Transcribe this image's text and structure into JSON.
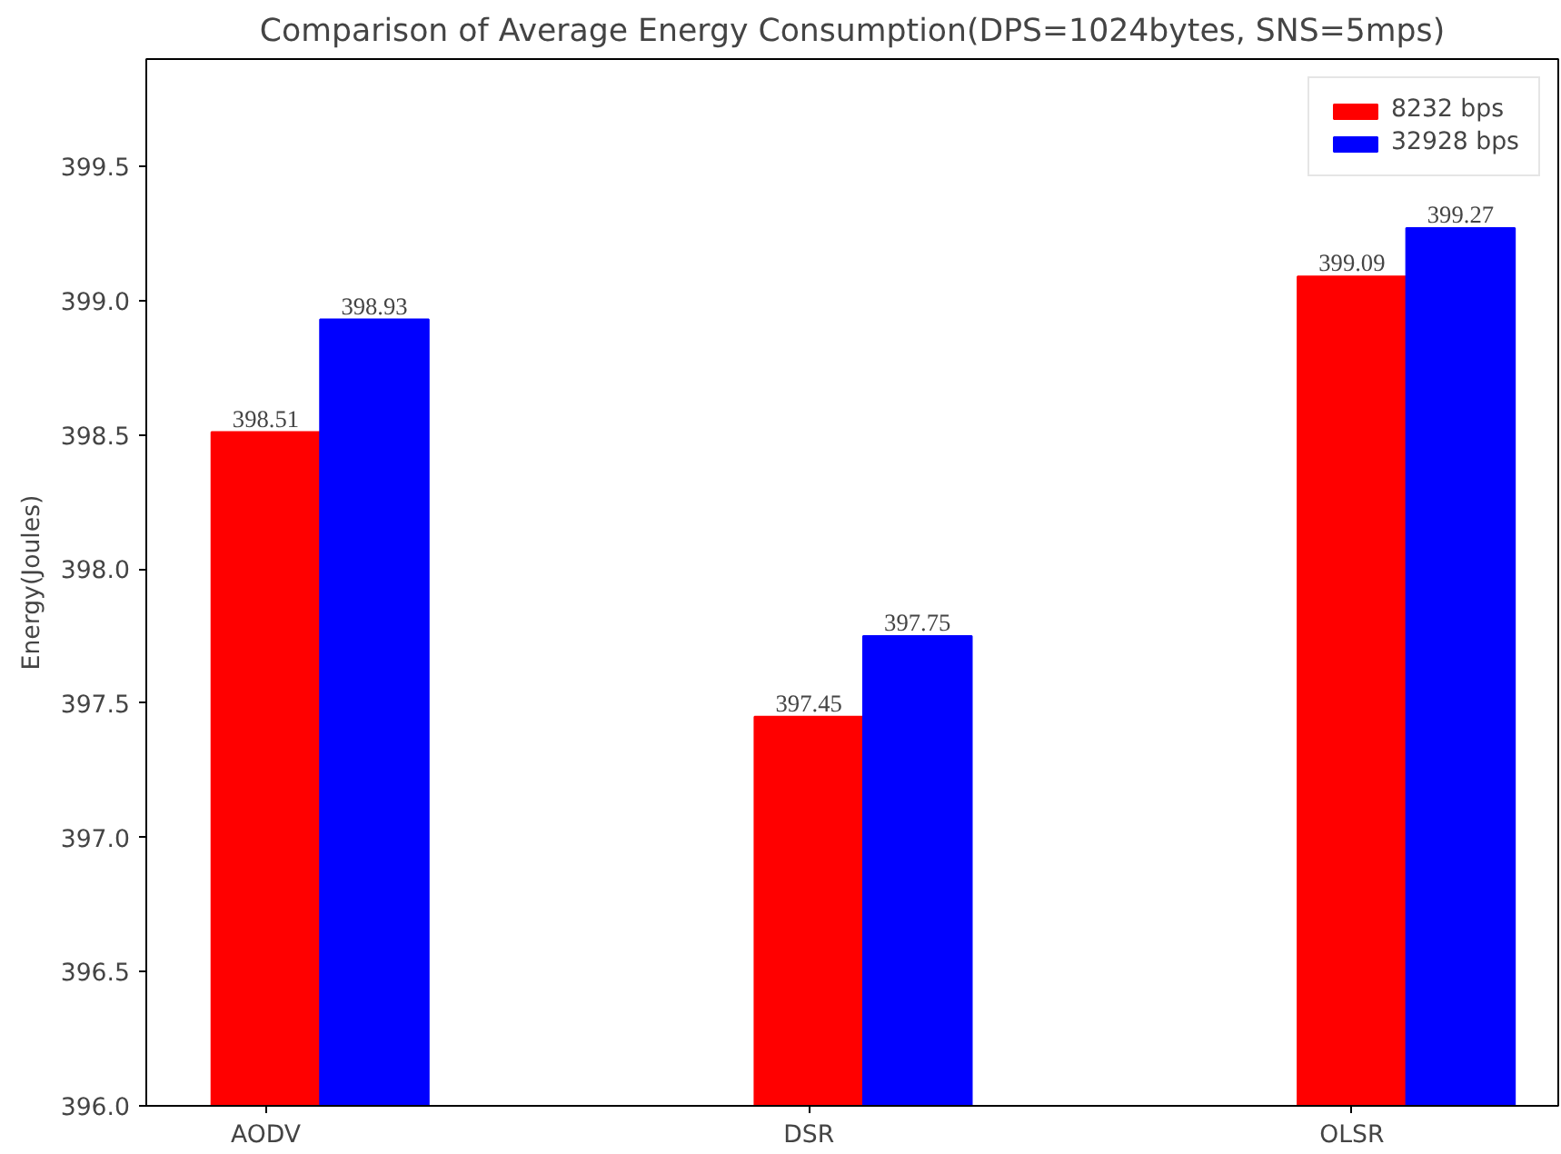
{
  "chart_data": {
    "type": "bar",
    "title": "Comparison of Average Energy Consumption(DPS=1024bytes, SNS=5mps)",
    "ylabel": "Energy(Joules)",
    "categories": [
      "AODV",
      "DSR",
      "OLSR"
    ],
    "series": [
      {
        "name": "8232 bps",
        "color": "#ff0000",
        "values": [
          398.51,
          397.45,
          399.09
        ]
      },
      {
        "name": "32928 bps",
        "color": "#0000ff",
        "values": [
          398.93,
          397.75,
          399.27
        ]
      }
    ],
    "ylim": [
      396.0,
      399.9
    ],
    "yticks": [
      {
        "value": 396.0,
        "label": "396.0"
      },
      {
        "value": 396.5,
        "label": "396.5"
      },
      {
        "value": 397.0,
        "label": "397.0"
      },
      {
        "value": 397.5,
        "label": "397.5"
      },
      {
        "value": 398.0,
        "label": "398.0"
      },
      {
        "value": 398.5,
        "label": "398.5"
      },
      {
        "value": 399.0,
        "label": "399.0"
      },
      {
        "value": 399.5,
        "label": "399.5"
      }
    ],
    "data_labels": true,
    "legend": "top right",
    "grid": false
  }
}
